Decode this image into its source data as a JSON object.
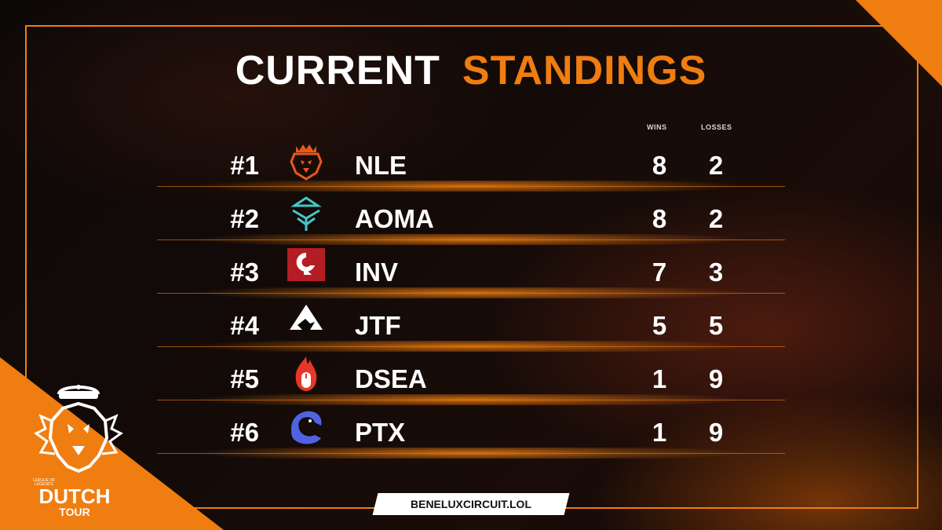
{
  "title": {
    "word1": "CURRENT",
    "word2": "STANDINGS"
  },
  "columns": {
    "wins": "WINS",
    "losses": "LOSSES"
  },
  "standings": [
    {
      "rank": "#1",
      "team": "NLE",
      "wins": "8",
      "losses": "2",
      "logo": "lion-crown-icon"
    },
    {
      "rank": "#2",
      "team": "AOMA",
      "wins": "8",
      "losses": "2",
      "logo": "teal-emblem-icon"
    },
    {
      "rank": "#3",
      "team": "INV",
      "wins": "7",
      "losses": "3",
      "logo": "red-square-icon"
    },
    {
      "rank": "#4",
      "team": "JTF",
      "wins": "5",
      "losses": "5",
      "logo": "mountain-handshake-icon"
    },
    {
      "rank": "#5",
      "team": "DSEA",
      "wins": "1",
      "losses": "9",
      "logo": "flame-mouse-icon"
    },
    {
      "rank": "#6",
      "team": "PTX",
      "wins": "1",
      "losses": "9",
      "logo": "blue-horse-icon"
    }
  ],
  "footer": {
    "url": "BENELUXCIRCUIT.LOL"
  },
  "brand": {
    "main": "DUTCH",
    "sub": "TOUR",
    "tiny": "LEAGUE OF LEGENDS"
  },
  "colors": {
    "accent": "#f07d10",
    "background": "#0a0707"
  }
}
